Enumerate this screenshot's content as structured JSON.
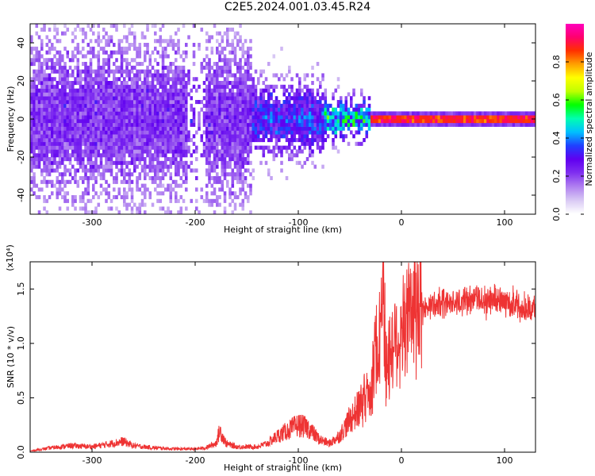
{
  "title": "C2E5.2024.001.03.45.R24",
  "colors": {
    "axis": "#000000",
    "snr_line": "#ee3333",
    "colormap": [
      "#ffffff",
      "#d8c8f4",
      "#b080f0",
      "#8030f0",
      "#6000f0",
      "#2040ff",
      "#00c0ff",
      "#00ffb0",
      "#00ff00",
      "#c0ff00",
      "#ffff00",
      "#ffa000",
      "#ff3000",
      "#ff0070",
      "#ff00c0"
    ]
  },
  "chart_data": [
    {
      "type": "heatmap",
      "xlabel": "Height of straight line (km)",
      "ylabel": "Frequency (Hz)",
      "xlim": [
        -360,
        130
      ],
      "ylim": [
        -50,
        50
      ],
      "xticks": [
        -300,
        -200,
        -100,
        0,
        100
      ],
      "xtick_labels": [
        "-300",
        "-200",
        "-100",
        "0",
        "100"
      ],
      "yticks": [
        -40,
        -20,
        0,
        20,
        40
      ],
      "ytick_labels": [
        "-40",
        "-20",
        "0",
        "20",
        "40"
      ],
      "colorbar": {
        "label": "Normalized spectral amplitude",
        "range": [
          0,
          1
        ],
        "ticks": [
          0.0,
          0.2,
          0.4,
          0.6,
          0.8
        ],
        "tick_labels": [
          "0.0",
          "0.2",
          "0.4",
          "0.6",
          "0.8"
        ]
      },
      "description_regions": [
        {
          "x_range": [
            -360,
            -145
          ],
          "freq_spread": 50,
          "amplitude": 0.18
        },
        {
          "x_range": [
            -145,
            -75
          ],
          "freq_spread": 22,
          "amplitude": 0.3
        },
        {
          "x_range": [
            -75,
            -30
          ],
          "freq_spread": 12,
          "amplitude": 0.45
        },
        {
          "x_range": [
            -30,
            130
          ],
          "freq_spread": 5,
          "amplitude": 0.9
        }
      ]
    },
    {
      "type": "line",
      "xlabel": "Height of straight line (km)",
      "ylabel": "SNR (10 * v/v)",
      "y_multiplier": "(x10⁴)",
      "xlim": [
        -360,
        130
      ],
      "ylim": [
        0,
        1.75
      ],
      "xticks": [
        -300,
        -200,
        -100,
        0,
        100
      ],
      "xtick_labels": [
        "-300",
        "-200",
        "-100",
        "0",
        "100"
      ],
      "yticks": [
        0.0,
        0.5,
        1.0,
        1.5
      ],
      "ytick_labels": [
        "0.0",
        "0.5",
        "1.0",
        "1.5"
      ],
      "series": [
        {
          "x": [
            -360,
            -340,
            -320,
            -300,
            -280,
            -270,
            -260,
            -240,
            -220,
            -200,
            -190,
            -180,
            -176,
            -170,
            -160,
            -140,
            -130,
            -120,
            -110,
            -100,
            -90,
            -80,
            -70,
            -60,
            -50,
            -40,
            -30,
            -25,
            -20,
            -18,
            -15,
            -10,
            -5,
            0,
            10,
            20,
            40,
            60,
            80,
            100,
            120,
            130
          ],
          "y": [
            0.01,
            0.04,
            0.06,
            0.05,
            0.08,
            0.1,
            0.06,
            0.04,
            0.03,
            0.03,
            0.04,
            0.08,
            0.2,
            0.08,
            0.05,
            0.05,
            0.08,
            0.15,
            0.2,
            0.25,
            0.22,
            0.12,
            0.08,
            0.15,
            0.3,
            0.42,
            0.6,
            0.9,
            1.2,
            1.7,
            0.75,
            0.95,
            1.05,
            1.12,
            1.25,
            1.32,
            1.38,
            1.4,
            1.4,
            1.4,
            1.32,
            1.32
          ]
        }
      ]
    }
  ]
}
